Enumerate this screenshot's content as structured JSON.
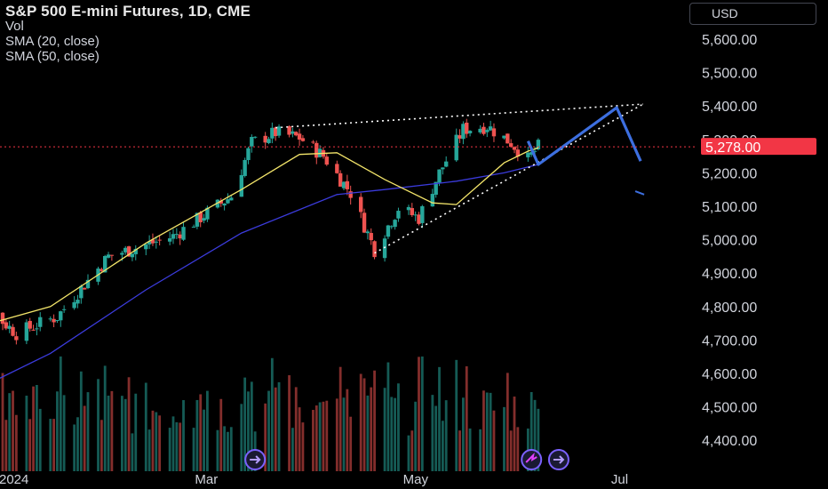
{
  "header": {
    "title": "S&P 500 E-mini Futures, 1D, CME",
    "indicators": [
      "Vol",
      "SMA (20, close)",
      "SMA (50, close)"
    ],
    "currency": "USD"
  },
  "colors": {
    "up": "#26a69a",
    "down": "#ef5350",
    "sma20": "#f3e56a",
    "sma50": "#3b3bdc",
    "annotation": "#3d6fe0",
    "price_label_bg": "#f23645"
  },
  "chart_data": {
    "type": "candlestick",
    "title": "S&P 500 E-mini Futures, 1D, CME",
    "y_axis": {
      "ticks": [
        "5,600.00",
        "5,500.00",
        "5,400.00",
        "5,300.00",
        "5,200.00",
        "5,100.00",
        "5,000.00",
        "4,900.00",
        "4,800.00",
        "4,700.00",
        "4,600.00",
        "4,500.00",
        "4,400.00"
      ],
      "range": [
        4350,
        5680
      ]
    },
    "x_axis": {
      "ticks": [
        {
          "label": "2024",
          "date": "2024-01-01"
        },
        {
          "label": "Mar",
          "date": "2024-03-01"
        },
        {
          "label": "May",
          "date": "2024-05-01"
        },
        {
          "label": "Jul",
          "date": "2024-07-01"
        }
      ]
    },
    "last_price": {
      "label": "5,278.00",
      "value": 5278
    },
    "candles_summary": {
      "start_date": "2023-12-18",
      "start_close": 4760,
      "mid_march_high": 5340,
      "april_low": 4960,
      "late_may_high": 5370,
      "last_close": 5278
    },
    "sma20_points": [
      [
        "2023-12-18",
        4720
      ],
      [
        "2024-01-15",
        4800
      ],
      [
        "2024-02-12",
        4990
      ],
      [
        "2024-03-11",
        5150
      ],
      [
        "2024-03-28",
        5255
      ],
      [
        "2024-04-08",
        5260
      ],
      [
        "2024-04-22",
        5180
      ],
      [
        "2024-05-06",
        5110
      ],
      [
        "2024-05-13",
        5105
      ],
      [
        "2024-05-27",
        5230
      ],
      [
        "2024-06-03",
        5265
      ],
      [
        "2024-06-06",
        5275
      ]
    ],
    "sma50_points": [
      [
        "2023-12-18",
        4520
      ],
      [
        "2024-01-15",
        4660
      ],
      [
        "2024-02-12",
        4850
      ],
      [
        "2024-03-11",
        5020
      ],
      [
        "2024-04-08",
        5135
      ],
      [
        "2024-04-22",
        5150
      ],
      [
        "2024-05-13",
        5175
      ],
      [
        "2024-05-27",
        5200
      ],
      [
        "2024-06-06",
        5225
      ]
    ],
    "volume_bars": "daily, heights relative"
  }
}
